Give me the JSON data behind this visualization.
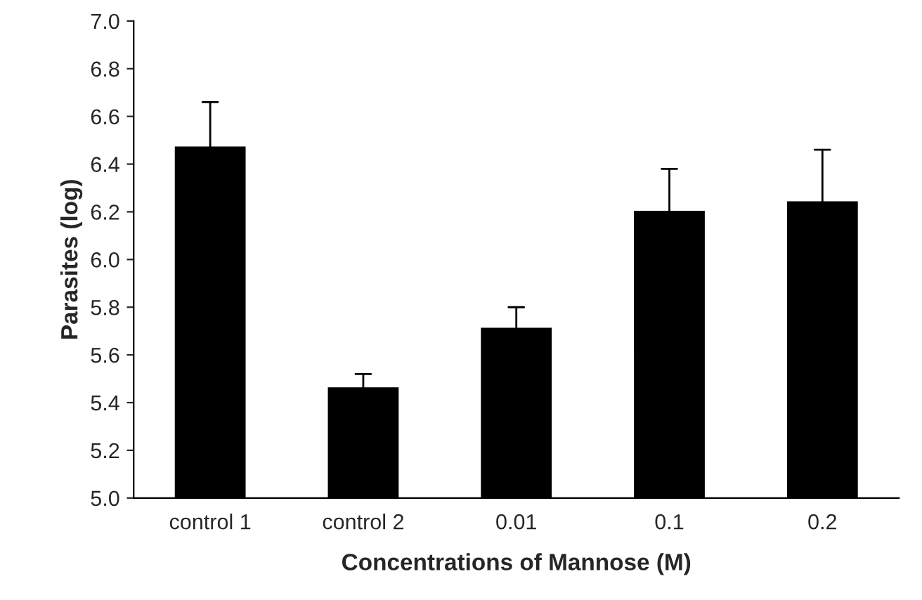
{
  "chart_data": {
    "type": "bar",
    "xlabel": "Concentrations of Mannose (M)",
    "ylabel": "Parasites (log)",
    "categories": [
      "control 1",
      "control 2",
      "0.01",
      "0.1",
      "0.2"
    ],
    "values": [
      6.47,
      5.46,
      5.71,
      6.2,
      6.24
    ],
    "errors": [
      [
        6.47,
        6.66
      ],
      [
        5.46,
        5.52
      ],
      [
        5.71,
        5.8
      ],
      [
        6.2,
        6.38
      ],
      [
        6.24,
        6.46
      ]
    ],
    "color": "#000000",
    "ylim": [
      5.0,
      7.0
    ],
    "yticks": [
      {
        "value": 5.0,
        "label": "5.0"
      },
      {
        "value": 5.2,
        "label": "5.2"
      },
      {
        "value": 5.4,
        "label": "5.4"
      },
      {
        "value": 5.6,
        "label": "5.6"
      },
      {
        "value": 5.8,
        "label": "5.8"
      },
      {
        "value": 6.0,
        "label": "6.0"
      },
      {
        "value": 6.2,
        "label": "6.2"
      },
      {
        "value": 6.4,
        "label": "6.4"
      },
      {
        "value": 6.6,
        "label": "6.6"
      },
      {
        "value": 6.8,
        "label": "6.8"
      },
      {
        "value": 7.0,
        "label": "7.0"
      }
    ],
    "grid": false
  }
}
